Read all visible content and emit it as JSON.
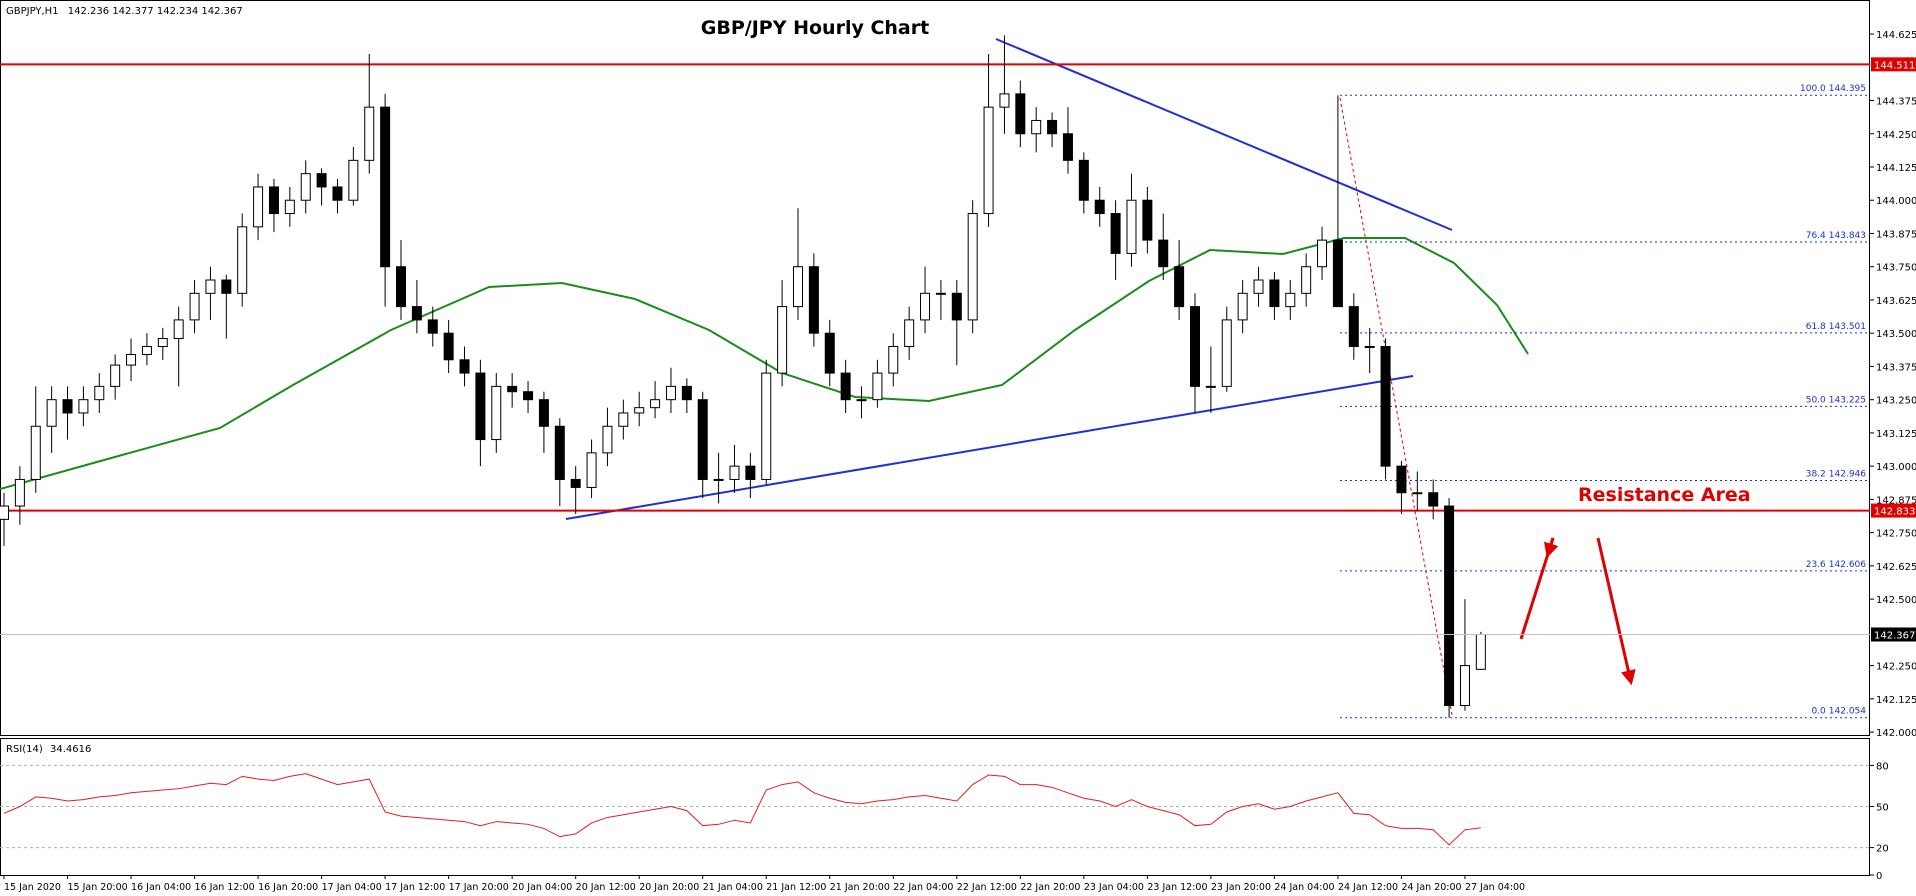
{
  "chart_data": {
    "type": "candlestick",
    "title": "GBP/JPY Hourly Chart",
    "symbol": "GBPJPY,H1",
    "annotation": "Resistance Area",
    "categories": [
      "15 Jan 2020",
      null,
      null,
      null,
      "15 Jan 20:00",
      null,
      null,
      null,
      "16 Jan 04:00",
      null,
      null,
      null,
      "16 Jan 12:00",
      null,
      null,
      null,
      "16 Jan 20:00",
      null,
      null,
      null,
      "17 Jan 04:00",
      null,
      null,
      null,
      "17 Jan 12:00",
      null,
      null,
      null,
      "17 Jan 20:00",
      null,
      null,
      null,
      "20 Jan 04:00",
      null,
      null,
      null,
      "20 Jan 12:00",
      null,
      null,
      null,
      "20 Jan 20:00",
      null,
      null,
      null,
      "21 Jan 04:00",
      null,
      null,
      null,
      "21 Jan 12:00",
      null,
      null,
      null,
      "21 Jan 20:00",
      null,
      null,
      null,
      "22 Jan 04:00",
      null,
      null,
      null,
      "22 Jan 12:00",
      null,
      null,
      null,
      "22 Jan 20:00",
      null,
      null,
      null,
      "23 Jan 04:00",
      null,
      null,
      null,
      "23 Jan 12:00",
      null,
      null,
      null,
      "23 Jan 20:00",
      null,
      null,
      null,
      "24 Jan 04:00",
      null,
      null,
      null,
      "24 Jan 12:00",
      null,
      null,
      null,
      "24 Jan 20:00",
      null,
      null,
      null,
      "27 Jan 04:00",
      null
    ],
    "candles": {
      "open": [
        142.8,
        142.85,
        142.95,
        143.15,
        143.25,
        143.2,
        143.25,
        143.3,
        143.38,
        143.42,
        143.45,
        143.48,
        143.55,
        143.65,
        143.7,
        143.65,
        143.9,
        144.05,
        143.95,
        144.0,
        144.1,
        144.05,
        144.0,
        144.15,
        144.35,
        143.75,
        143.6,
        143.55,
        143.5,
        143.4,
        143.35,
        143.1,
        143.3,
        143.28,
        143.25,
        143.15,
        142.95,
        142.92,
        143.05,
        143.15,
        143.2,
        143.22,
        143.25,
        143.3,
        143.25,
        142.95,
        142.95,
        143.0,
        142.95,
        143.35,
        143.6,
        143.75,
        143.5,
        143.35,
        143.25,
        143.25,
        143.35,
        143.45,
        143.55,
        143.65,
        143.65,
        143.55,
        143.95,
        144.35,
        144.4,
        144.25,
        144.3,
        144.25,
        144.15,
        144.0,
        143.95,
        143.8,
        144.0,
        143.85,
        143.75,
        143.6,
        143.3,
        143.3,
        143.55,
        143.65,
        143.7,
        143.6,
        143.65,
        143.75,
        143.85,
        143.6,
        143.45,
        143.45,
        143.0,
        142.9,
        142.9,
        142.85,
        142.1,
        142.236
      ],
      "high": [
        142.9,
        143.0,
        143.3,
        143.3,
        143.3,
        143.3,
        143.35,
        143.42,
        143.48,
        143.5,
        143.52,
        143.6,
        143.7,
        143.75,
        143.72,
        143.95,
        144.1,
        144.08,
        144.05,
        144.15,
        144.12,
        144.08,
        144.2,
        144.55,
        144.4,
        143.85,
        143.7,
        143.6,
        143.55,
        143.45,
        143.4,
        143.35,
        143.35,
        143.32,
        143.28,
        143.18,
        143.0,
        143.1,
        143.22,
        143.25,
        143.28,
        143.32,
        143.37,
        143.33,
        143.28,
        143.05,
        143.08,
        143.05,
        143.4,
        143.7,
        143.97,
        143.8,
        143.55,
        143.4,
        143.3,
        143.4,
        143.5,
        143.6,
        143.75,
        143.7,
        143.7,
        144.0,
        144.55,
        144.62,
        144.45,
        144.35,
        144.33,
        144.35,
        144.18,
        144.05,
        144.0,
        144.1,
        144.05,
        143.95,
        143.85,
        143.65,
        143.45,
        143.6,
        143.7,
        143.75,
        143.73,
        143.7,
        143.8,
        143.9,
        144.395,
        143.65,
        143.52,
        143.48,
        143.02,
        142.98,
        142.95,
        142.88,
        142.5,
        142.377
      ],
      "low": [
        142.7,
        142.78,
        142.9,
        143.05,
        143.1,
        143.15,
        143.2,
        143.25,
        143.32,
        143.38,
        143.4,
        143.3,
        143.5,
        143.55,
        143.48,
        143.6,
        143.85,
        143.88,
        143.9,
        143.95,
        143.98,
        143.95,
        143.98,
        144.1,
        143.6,
        143.55,
        143.5,
        143.45,
        143.35,
        143.3,
        143.0,
        143.05,
        143.22,
        143.2,
        143.05,
        142.85,
        142.82,
        142.88,
        143.0,
        143.1,
        143.15,
        143.18,
        143.2,
        143.2,
        142.88,
        142.86,
        142.9,
        142.88,
        142.93,
        143.3,
        143.55,
        143.45,
        143.3,
        143.2,
        143.18,
        143.22,
        143.3,
        143.4,
        143.5,
        143.55,
        143.38,
        143.5,
        143.9,
        144.25,
        144.2,
        144.18,
        144.2,
        144.1,
        143.95,
        143.9,
        143.7,
        143.75,
        143.8,
        143.7,
        143.55,
        143.2,
        143.2,
        143.28,
        143.5,
        143.6,
        143.55,
        143.55,
        143.6,
        143.7,
        143.8,
        143.4,
        143.35,
        142.95,
        142.82,
        142.83,
        142.8,
        142.054,
        142.08,
        142.234
      ],
      "close": [
        142.85,
        142.95,
        143.15,
        143.25,
        143.2,
        143.25,
        143.3,
        143.38,
        143.42,
        143.45,
        143.48,
        143.55,
        143.65,
        143.7,
        143.65,
        143.9,
        144.05,
        143.95,
        144.0,
        144.1,
        144.05,
        144.0,
        144.15,
        144.35,
        143.75,
        143.6,
        143.55,
        143.5,
        143.4,
        143.35,
        143.1,
        143.3,
        143.28,
        143.25,
        143.15,
        142.95,
        142.92,
        143.05,
        143.15,
        143.2,
        143.22,
        143.25,
        143.3,
        143.25,
        142.95,
        142.95,
        143.0,
        142.95,
        143.35,
        143.6,
        143.75,
        143.5,
        143.35,
        143.25,
        143.25,
        143.35,
        143.45,
        143.55,
        143.65,
        143.65,
        143.55,
        143.95,
        144.35,
        144.4,
        144.25,
        144.3,
        144.25,
        144.15,
        144.0,
        143.95,
        143.8,
        144.0,
        143.85,
        143.75,
        143.6,
        143.3,
        143.3,
        143.55,
        143.65,
        143.7,
        143.6,
        143.65,
        143.75,
        143.85,
        143.6,
        143.45,
        143.45,
        143.0,
        142.9,
        142.9,
        142.85,
        142.1,
        142.25,
        142.367
      ]
    },
    "up_color": "#ffffff",
    "down_color": "#000000",
    "ylim": [
      141.989,
      144.753
    ],
    "yticks": [
      {
        "value": 142,
        "label": "142.000"
      },
      142.125,
      {
        "value": 142.25,
        "label": "142.250"
      },
      {
        "value": 142.5,
        "label": "142.500"
      },
      142.625,
      {
        "value": 142.75,
        "label": "142.750"
      },
      142.875,
      {
        "value": 143,
        "label": "143.000"
      },
      143.125,
      {
        "value": 143.25,
        "label": "143.250"
      },
      143.375,
      {
        "value": 143.5,
        "label": "143.500"
      },
      143.625,
      {
        "value": 143.75,
        "label": "143.750"
      },
      143.875,
      {
        "value": 144,
        "label": "144.000"
      },
      144.125,
      {
        "value": 144.25,
        "label": "144.250"
      },
      144.375,
      144.625
    ],
    "levels": [
      {
        "value": 144.511,
        "color": "#e00000"
      },
      {
        "value": 142.833,
        "color": "#e00000"
      }
    ],
    "fib": {
      "color": "#1f2fd6",
      "levels": [
        {
          "level": "100.0",
          "value": 144.395
        },
        {
          "level": "76.4",
          "value": 143.843
        },
        {
          "level": "61.8",
          "value": 143.501
        },
        {
          "level": "50.0",
          "value": 143.225
        },
        {
          "level": "38.2",
          "value": 142.946
        },
        {
          "level": "23.6",
          "value": 142.606
        },
        {
          "level": "0.0",
          "value": 142.054
        }
      ]
    },
    "rsi": {
      "label": "RSI(14)",
      "color": "#e02020",
      "ylim": [
        0,
        100
      ],
      "yticks": [
        80,
        50,
        20,
        0
      ],
      "values": [
        45,
        50,
        57,
        56,
        54,
        55,
        57,
        58,
        60,
        61,
        62,
        63,
        65,
        67,
        66,
        72,
        70,
        69,
        72,
        74,
        70,
        66,
        68,
        70,
        46,
        43,
        42,
        41,
        40,
        39,
        36,
        39,
        38,
        37,
        34,
        28,
        30,
        38,
        42,
        44,
        46,
        48,
        50,
        47,
        36,
        37,
        40,
        38,
        62,
        66,
        68,
        60,
        56,
        53,
        52,
        54,
        55,
        57,
        58,
        56,
        54,
        66,
        73,
        72,
        66,
        66,
        64,
        60,
        56,
        54,
        50,
        55,
        50,
        47,
        44,
        36,
        37,
        46,
        50,
        52,
        48,
        50,
        54,
        57,
        60,
        45,
        44,
        36,
        34,
        34,
        33,
        22,
        33,
        34.4616
      ]
    }
  }
}
